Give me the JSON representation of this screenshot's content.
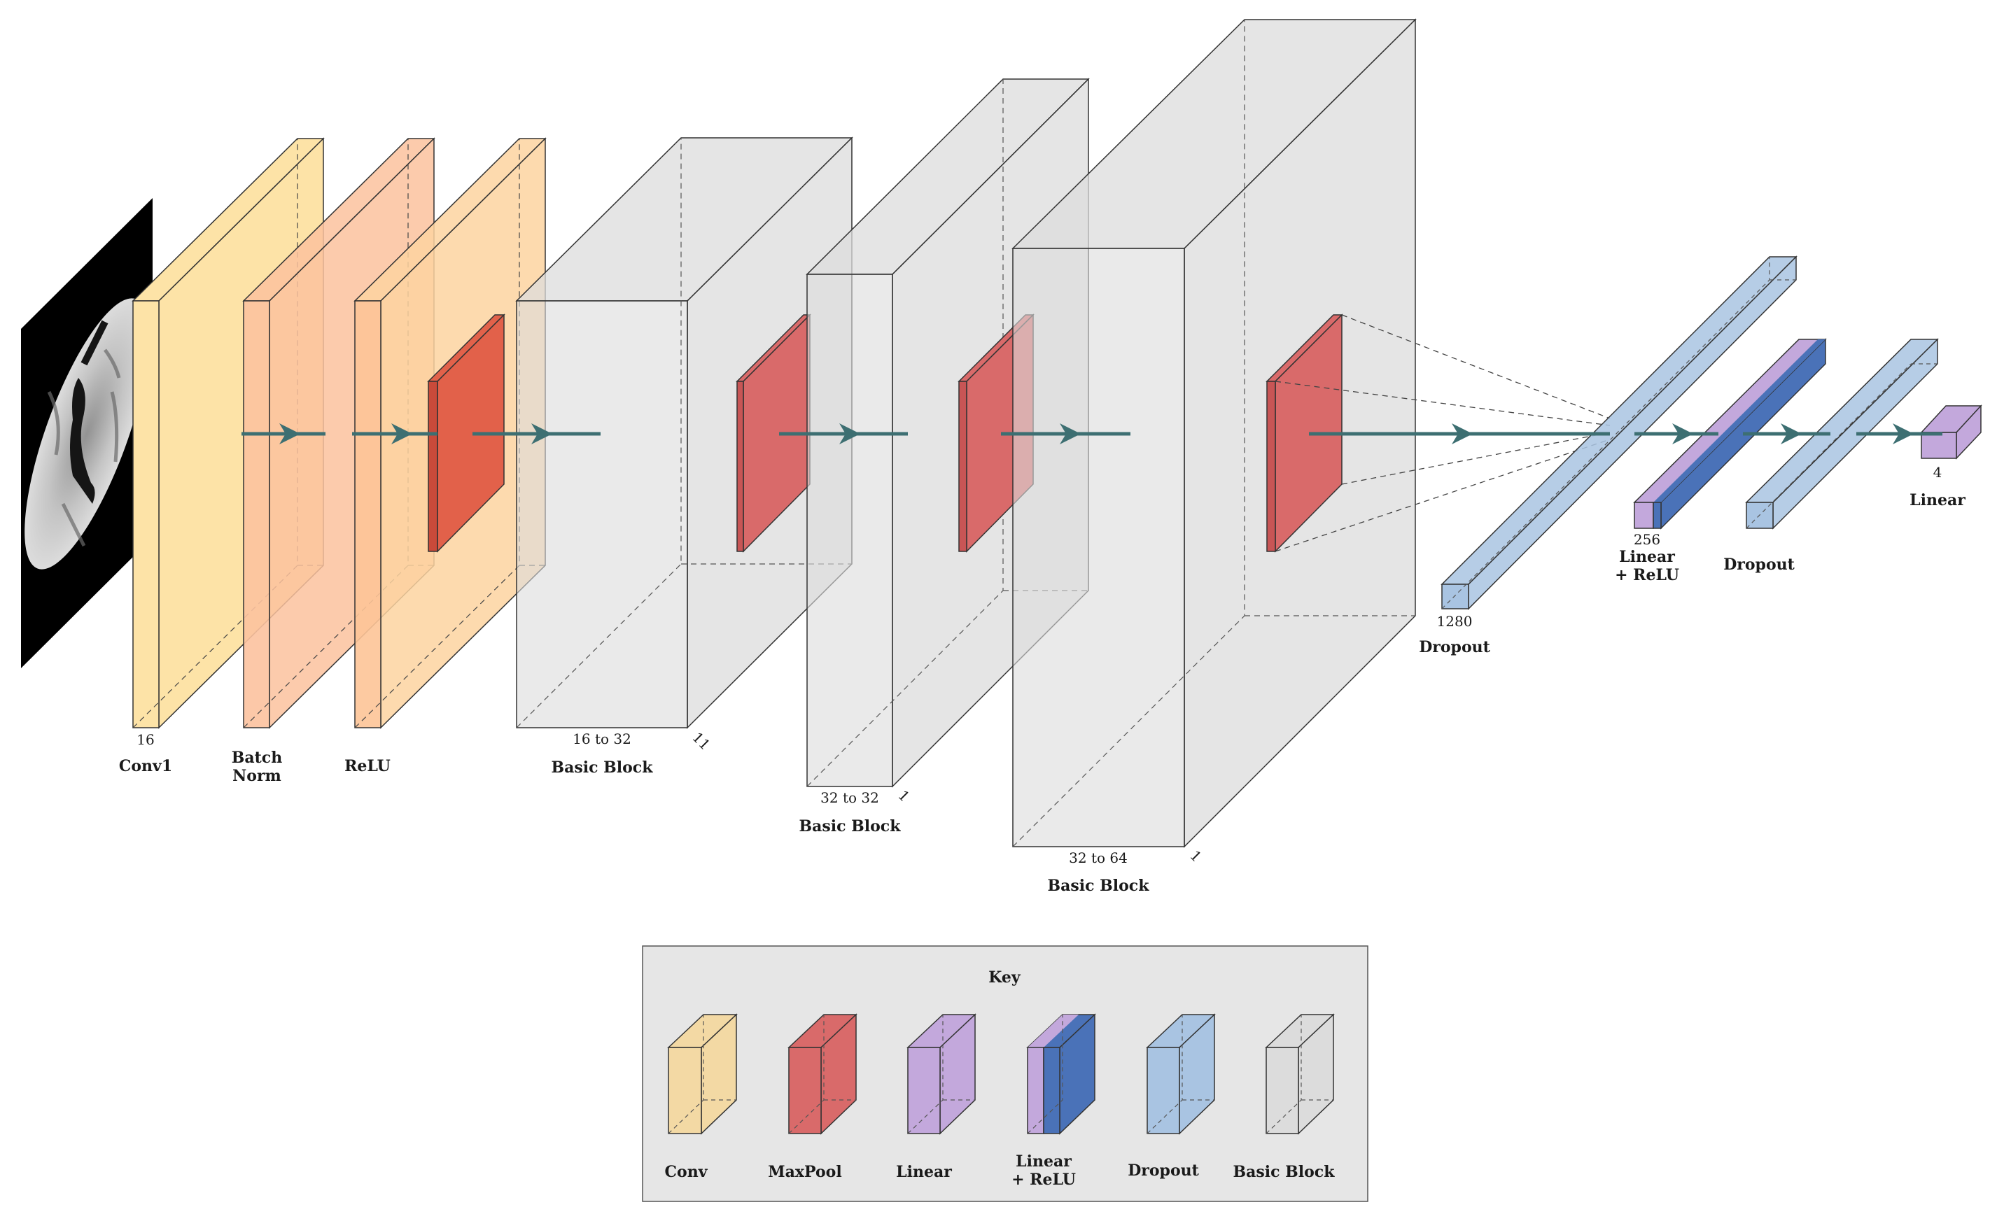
{
  "colors": {
    "conv": "#fde3a7",
    "conv_key": "#f3d9a4",
    "batchnorm": "#fcc29e",
    "relu": "#fdd4a0",
    "maxpool": "#d96a6a",
    "maxpool_dark": "#e2614a",
    "linear": "#c3a8dc",
    "linear_relu_dark": "#4a72b8",
    "dropout": "#a9c4e2",
    "basic_block": "#dcdcdc",
    "arrow": "#3d6f72",
    "key_bg": "#e6e6e6"
  },
  "icons": {
    "input_image": "brain-mri-icon"
  },
  "layers": {
    "conv1": {
      "label": "Conv1",
      "size": "16"
    },
    "batchnorm": {
      "label_line1": "Batch",
      "label_line2": "Norm"
    },
    "relu": {
      "label": "ReLU"
    },
    "block1": {
      "label": "Basic Block",
      "size": "16 to 32",
      "depth": "11"
    },
    "block2": {
      "label": "Basic Block",
      "size": "32 to 32",
      "depth": "1"
    },
    "block3": {
      "label": "Basic Block",
      "size": "32 to 64",
      "depth": "1"
    },
    "dropout1": {
      "label": "Dropout",
      "size": "1280"
    },
    "linear_relu": {
      "label_line1": "Linear",
      "label_line2": "+ ReLU",
      "size": "256"
    },
    "dropout2": {
      "label": "Dropout"
    },
    "linear_out": {
      "label": "Linear",
      "size": "4"
    }
  },
  "key": {
    "title": "Key",
    "items": [
      {
        "label": "Conv"
      },
      {
        "label": "MaxPool"
      },
      {
        "label": "Linear"
      },
      {
        "label_line1": "Linear",
        "label_line2": "+ ReLU"
      },
      {
        "label": "Dropout"
      },
      {
        "label": "Basic Block"
      }
    ]
  }
}
